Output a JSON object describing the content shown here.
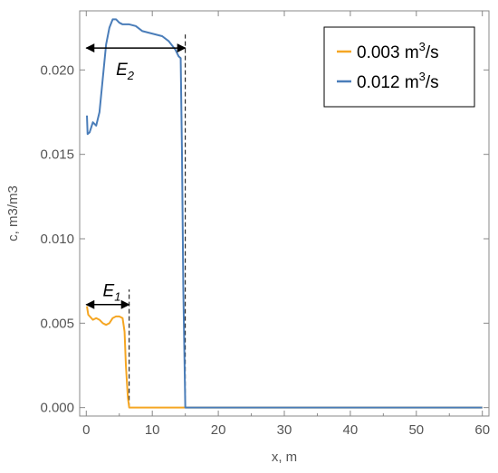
{
  "chart_data": {
    "type": "line",
    "title": "",
    "xlabel": "x, m",
    "ylabel": "c, m3/m3",
    "xlim": [
      -1,
      61
    ],
    "ylim": [
      -0.0005,
      0.0235
    ],
    "x_ticks": [
      0,
      10,
      20,
      30,
      40,
      50,
      60
    ],
    "x_tick_labels": [
      "0",
      "10",
      "20",
      "30",
      "40",
      "50",
      "60"
    ],
    "y_ticks": [
      0.0,
      0.005,
      0.01,
      0.015,
      0.02
    ],
    "y_tick_labels": [
      "0.000",
      "0.005",
      "0.010",
      "0.015",
      "0.020"
    ],
    "grid": false,
    "legend_position": "top-right",
    "series": [
      {
        "name_base": "0.003 m",
        "name_sup": "3",
        "name_suffix": "/s",
        "color": "#F5A623",
        "points": [
          [
            0.1,
            0.006
          ],
          [
            0.3,
            0.0055
          ],
          [
            1.0,
            0.0052
          ],
          [
            1.5,
            0.0053
          ],
          [
            2.0,
            0.0052
          ],
          [
            2.5,
            0.005
          ],
          [
            3.0,
            0.0049
          ],
          [
            3.5,
            0.005
          ],
          [
            4.0,
            0.0053
          ],
          [
            4.5,
            0.0054
          ],
          [
            5.0,
            0.0054
          ],
          [
            5.5,
            0.0053
          ],
          [
            5.8,
            0.0045
          ],
          [
            6.0,
            0.0025
          ],
          [
            6.3,
            0.0006
          ],
          [
            6.5,
            0.0
          ],
          [
            60,
            0.0
          ]
        ]
      },
      {
        "name_base": "0.012 m",
        "name_sup": "3",
        "name_suffix": "/s",
        "color": "#4A7DB9",
        "points": [
          [
            0.1,
            0.0173
          ],
          [
            0.2,
            0.0162
          ],
          [
            0.5,
            0.0163
          ],
          [
            1.0,
            0.0169
          ],
          [
            1.5,
            0.0167
          ],
          [
            2.0,
            0.0175
          ],
          [
            2.5,
            0.0195
          ],
          [
            3.0,
            0.0215
          ],
          [
            3.5,
            0.0225
          ],
          [
            4.0,
            0.023
          ],
          [
            4.5,
            0.023
          ],
          [
            5.0,
            0.0228
          ],
          [
            5.5,
            0.0227
          ],
          [
            6.5,
            0.0227
          ],
          [
            7.5,
            0.0226
          ],
          [
            8.5,
            0.0223
          ],
          [
            9.5,
            0.0222
          ],
          [
            10.5,
            0.0221
          ],
          [
            11.5,
            0.022
          ],
          [
            12.5,
            0.0217
          ],
          [
            13.5,
            0.0212
          ],
          [
            14.0,
            0.0208
          ],
          [
            14.3,
            0.0207
          ],
          [
            14.5,
            0.015
          ],
          [
            14.7,
            0.007
          ],
          [
            15.0,
            0.0
          ],
          [
            60,
            0.0
          ]
        ]
      }
    ],
    "annotations": [
      {
        "label_base": "E",
        "label_sub": "2",
        "x_from": 0,
        "x_to": 15,
        "y_arrow": 0.0213,
        "y_label": 0.0197,
        "x_label": 4.5
      },
      {
        "label_base": "E",
        "label_sub": "1",
        "x_from": 0,
        "x_to": 6.5,
        "y_arrow": 0.0061,
        "y_label": 0.0066,
        "x_label": 2.5
      }
    ],
    "markers": [
      {
        "x": 15,
        "y_top": 0.0221
      },
      {
        "x": 6.5,
        "y_top": 0.007
      }
    ]
  }
}
